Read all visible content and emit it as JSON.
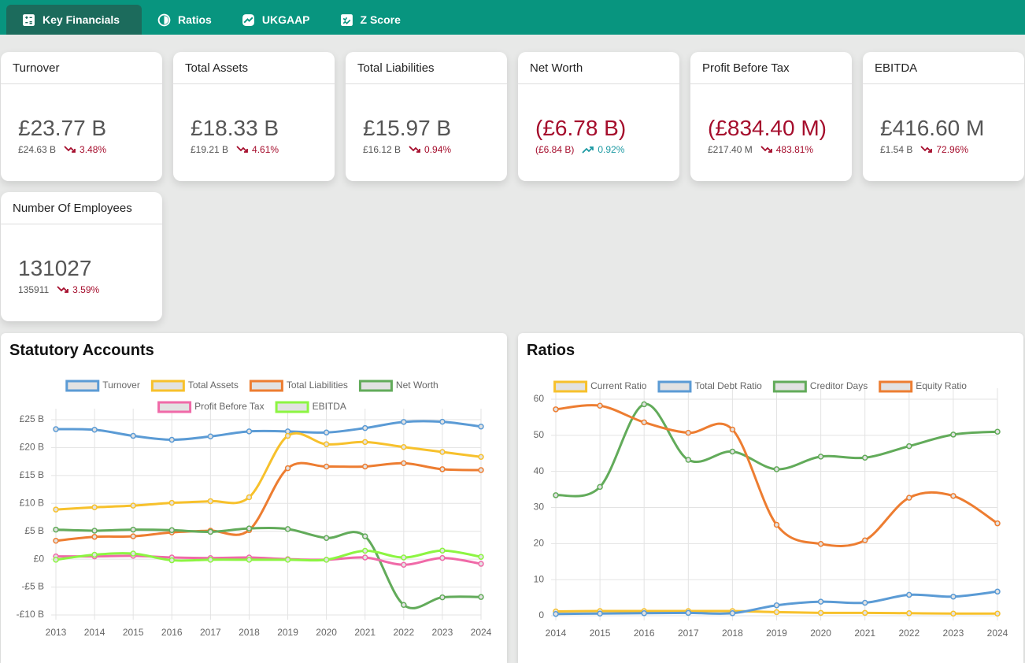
{
  "tabs": [
    "Key Financials",
    "Ratios",
    "UKGAAP",
    "Z Score"
  ],
  "cards": [
    {
      "title": "Turnover",
      "value": "£23.77 B",
      "previous": "£24.63 B",
      "change": "3.48%",
      "trend": "down"
    },
    {
      "title": "Total Assets",
      "value": "£18.33 B",
      "previous": "£19.21 B",
      "change": "4.61%",
      "trend": "down"
    },
    {
      "title": "Total Liabilities",
      "value": "£15.97 B",
      "previous": "£16.12 B",
      "change": "0.94%",
      "trend": "down"
    },
    {
      "title": "Net Worth",
      "value": "(£6.78 B)",
      "previous": "(£6.84 B)",
      "change": "0.92%",
      "trend": "up"
    },
    {
      "title": "Profit Before Tax",
      "value": "(£834.40 M)",
      "previous": "£217.40 M",
      "change": "483.81%",
      "trend": "down"
    },
    {
      "title": "EBITDA",
      "value": "£416.60 M",
      "previous": "£1.54 B",
      "change": "72.96%",
      "trend": "down"
    },
    {
      "title": "Number Of Employees",
      "value": "131027",
      "previous": "135911",
      "change": "3.59%",
      "trend": "down"
    }
  ],
  "chart_data": [
    {
      "type": "line",
      "title": "Statutory Accounts",
      "categories": [
        "2013",
        "2014",
        "2015",
        "2016",
        "2017",
        "2018",
        "2019",
        "2020",
        "2021",
        "2022",
        "2023",
        "2024"
      ],
      "ylim": [
        -10,
        25
      ],
      "yticks": [
        {
          "value": -10,
          "label": "-£10 B"
        },
        {
          "value": -5,
          "label": "-£5 B"
        },
        {
          "value": 0,
          "label": "£0"
        },
        {
          "value": 5,
          "label": "£5 B"
        },
        {
          "value": 10,
          "label": "£10 B"
        },
        {
          "value": 15,
          "label": "£15 B"
        },
        {
          "value": 20,
          "label": "£20 B"
        },
        {
          "value": 25,
          "label": "£25 B"
        }
      ],
      "grid": true,
      "series": [
        {
          "name": "Turnover",
          "color": "#5b9bd5",
          "values": [
            23.3,
            23.2,
            22.1,
            21.4,
            22.0,
            22.9,
            22.9,
            22.7,
            23.5,
            24.6,
            24.63,
            23.77
          ]
        },
        {
          "name": "Total Assets",
          "color": "#f7c12c",
          "values": [
            8.9,
            9.3,
            9.6,
            10.1,
            10.4,
            11.1,
            22.1,
            20.6,
            21.0,
            20.1,
            19.21,
            18.33
          ]
        },
        {
          "name": "Total Liabilities",
          "color": "#ed7d31",
          "values": [
            3.3,
            4.0,
            4.1,
            4.8,
            5.1,
            5.2,
            16.3,
            16.6,
            16.6,
            17.2,
            16.12,
            15.97
          ]
        },
        {
          "name": "Net Worth",
          "color": "#62ab5a",
          "values": [
            5.3,
            5.1,
            5.3,
            5.2,
            4.9,
            5.5,
            5.4,
            3.8,
            4.1,
            -8.2,
            -6.84,
            -6.78
          ]
        },
        {
          "name": "Profit Before Tax",
          "color": "#f06aa8",
          "values": [
            0.5,
            0.5,
            0.6,
            0.3,
            0.2,
            0.3,
            0.0,
            -0.1,
            0.3,
            -1.0,
            0.2174,
            -0.8344
          ]
        },
        {
          "name": "EBITDA",
          "color": "#8cf542",
          "values": [
            -0.1,
            0.8,
            1.0,
            -0.2,
            -0.1,
            -0.1,
            -0.1,
            -0.1,
            1.5,
            0.3,
            1.54,
            0.4166
          ]
        }
      ]
    },
    {
      "type": "line",
      "title": "Ratios",
      "categories": [
        "2014",
        "2015",
        "2016",
        "2017",
        "2018",
        "2019",
        "2020",
        "2021",
        "2022",
        "2023",
        "2024"
      ],
      "ylim": [
        0,
        60
      ],
      "yticks": [
        0,
        10,
        20,
        30,
        40,
        50,
        60
      ],
      "grid": true,
      "series": [
        {
          "name": "Current Ratio",
          "color": "#f7c12c",
          "values": [
            1.2,
            1.3,
            1.3,
            1.3,
            1.3,
            1.0,
            0.8,
            0.8,
            0.7,
            0.6,
            0.6
          ]
        },
        {
          "name": "Total Debt Ratio",
          "color": "#5b9bd5",
          "values": [
            0.5,
            0.6,
            0.7,
            0.8,
            0.7,
            2.9,
            3.9,
            3.6,
            5.8,
            5.3,
            6.7
          ]
        },
        {
          "name": "Creditor Days",
          "color": "#62ab5a",
          "values": [
            33.4,
            35.7,
            58.6,
            43.2,
            45.5,
            40.6,
            44.1,
            43.8,
            47.0,
            50.2,
            51.0
          ]
        },
        {
          "name": "Equity Ratio",
          "color": "#ed7d31",
          "values": [
            57.2,
            58.2,
            53.6,
            50.7,
            51.6,
            25.2,
            19.9,
            20.9,
            32.7,
            33.2,
            25.6
          ]
        }
      ]
    }
  ]
}
